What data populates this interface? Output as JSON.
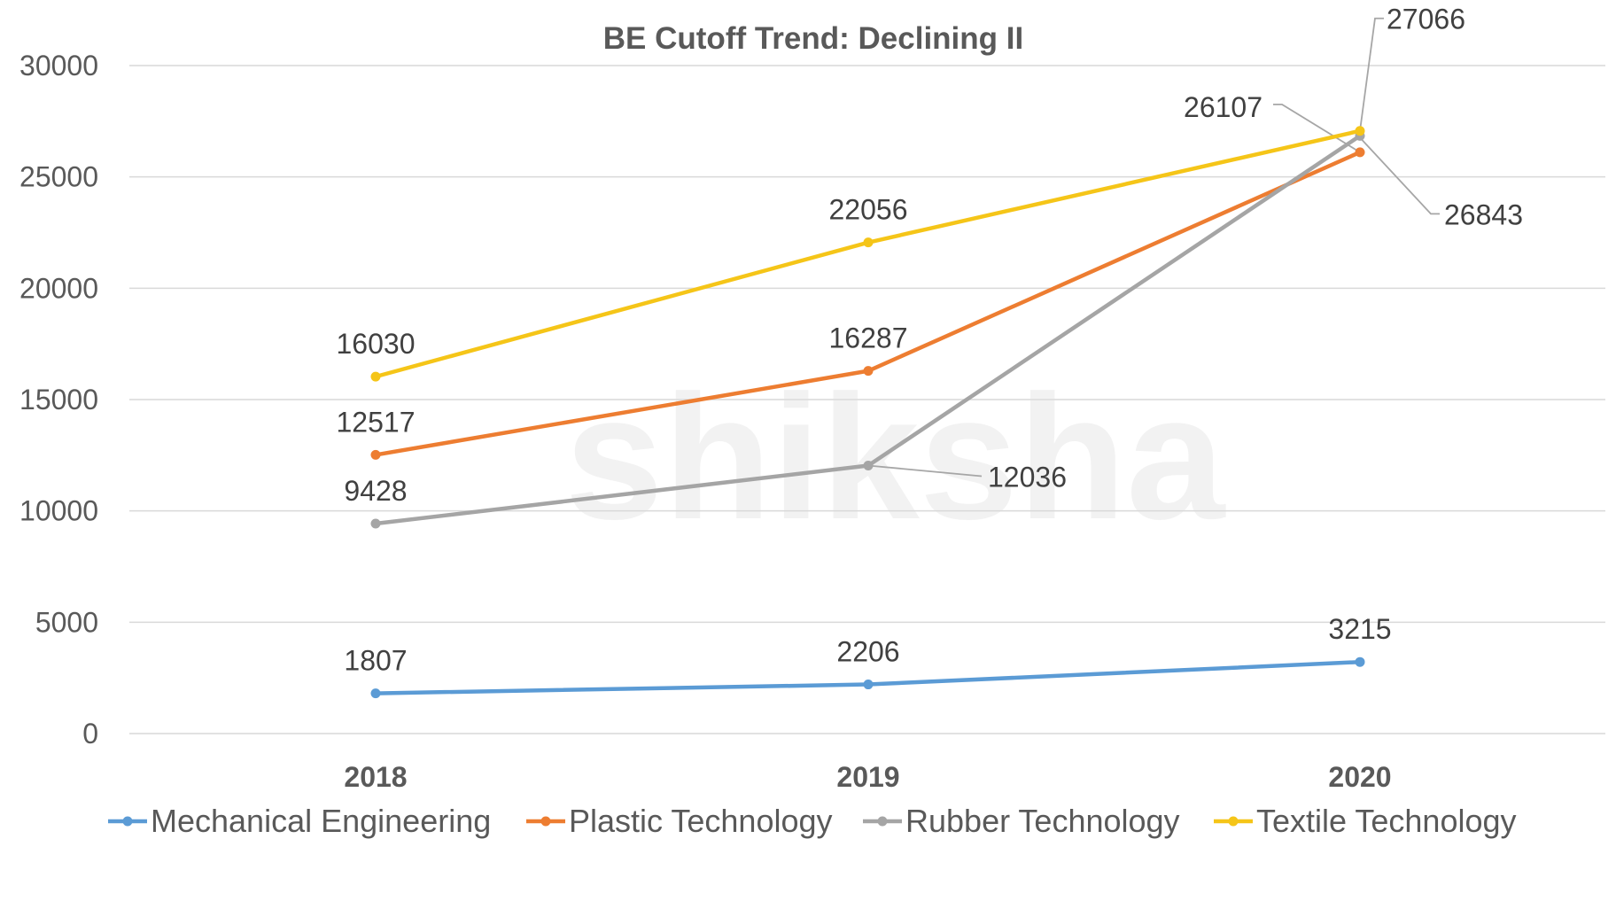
{
  "chart_data": {
    "type": "line",
    "title": "BE Cutoff Trend: Declining II",
    "categories": [
      "2018",
      "2019",
      "2020"
    ],
    "ylim": [
      0,
      30000
    ],
    "yticks": [
      "0",
      "5000",
      "10000",
      "15000",
      "20000",
      "25000",
      "30000"
    ],
    "grid": true,
    "legend_position": "bottom",
    "watermark": "shiksha",
    "series": [
      {
        "name": "Mechanical Engineering",
        "color": "#5B9BD5",
        "values": [
          1807,
          2206,
          3215
        ]
      },
      {
        "name": "Plastic Technology",
        "color": "#ED7D31",
        "values": [
          12517,
          16287,
          26107
        ]
      },
      {
        "name": "Rubber Technology",
        "color": "#A5A5A5",
        "values": [
          9428,
          12036,
          26843
        ]
      },
      {
        "name": "Textile Technology",
        "color": "#F5C518",
        "values": [
          16030,
          22056,
          27066
        ]
      }
    ]
  }
}
